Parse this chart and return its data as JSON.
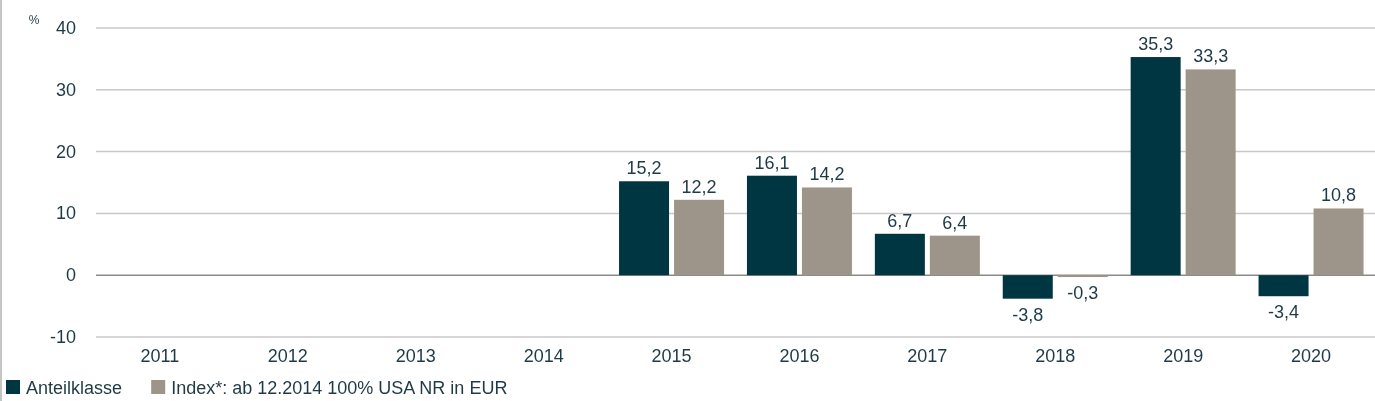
{
  "chart_data": {
    "type": "bar",
    "ylabel": "%",
    "categories": [
      "2011",
      "2012",
      "2013",
      "2014",
      "2015",
      "2016",
      "2017",
      "2018",
      "2019",
      "2020"
    ],
    "series": [
      {
        "name": "Anteilklasse",
        "color": "#003641",
        "values": [
          null,
          null,
          null,
          null,
          15.2,
          16.1,
          6.7,
          -3.8,
          35.3,
          -3.4
        ],
        "value_labels": [
          null,
          null,
          null,
          null,
          "15,2",
          "16,1",
          "6,7",
          "-3,8",
          "35,3",
          "-3,4"
        ]
      },
      {
        "name": "Index*: ab 12.2014 100% USA NR in EUR",
        "color": "#9e958a",
        "values": [
          null,
          null,
          null,
          null,
          12.2,
          14.2,
          6.4,
          -0.3,
          33.3,
          10.8
        ],
        "value_labels": [
          null,
          null,
          null,
          null,
          "12,2",
          "14,2",
          "6,4",
          "-0,3",
          "33,3",
          "10,8"
        ]
      }
    ],
    "ylim": [
      -10,
      40
    ],
    "yticks": [
      -10,
      0,
      10,
      20,
      30,
      40
    ],
    "grid": "y",
    "legend": "bottom left"
  }
}
